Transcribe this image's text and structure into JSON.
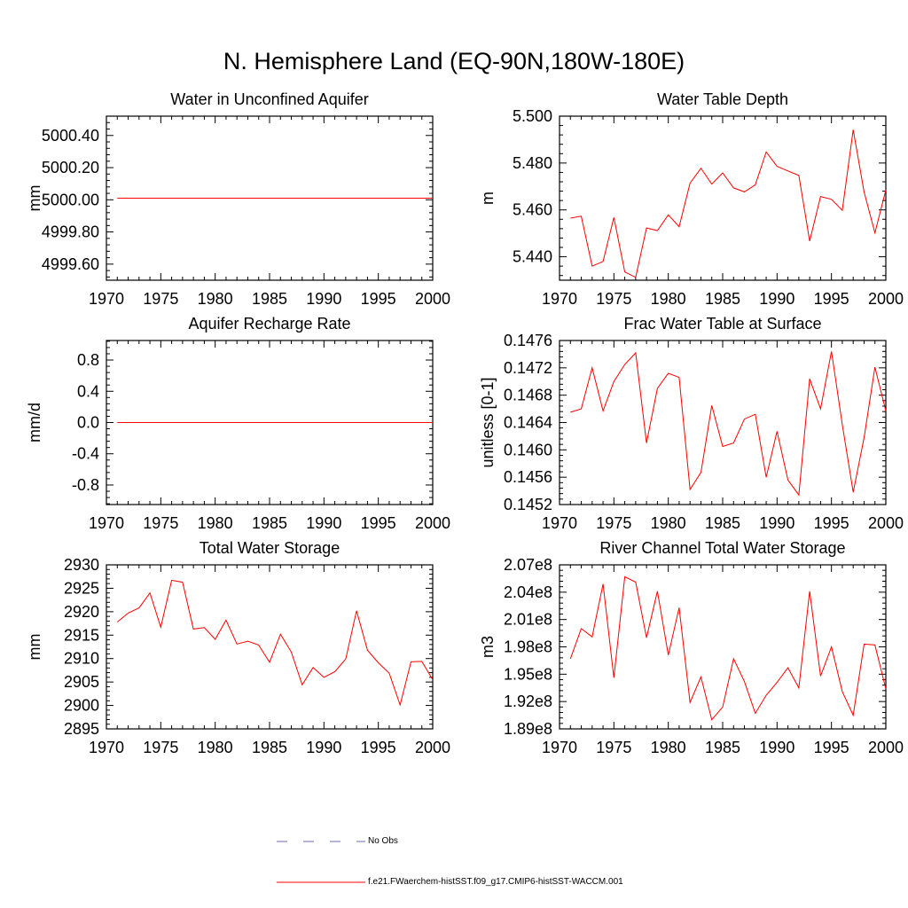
{
  "page_title": "N. Hemisphere Land (EQ-90N,180W-180E)",
  "legend": {
    "obs_label": "No Obs",
    "obs_color": "#6b6bb8",
    "model_label": "f.e21.FWaerchem-histSST.f09_g17.CMIP6-histSST-WACCM.001",
    "model_color": "#ff0000"
  },
  "chart_data": [
    {
      "type": "line",
      "title": "Water in Unconfined Aquifer",
      "ylabel": "mm",
      "xlim": [
        1970,
        2000
      ],
      "ylim": [
        4999.5,
        5000.52
      ],
      "xticks": [
        1970,
        1975,
        1980,
        1985,
        1990,
        1995,
        2000
      ],
      "xtick_labels": [
        "1970",
        "1975",
        "1980",
        "1985",
        "1990",
        "1995",
        "2000"
      ],
      "yticks": [
        4999.6,
        4999.8,
        5000.0,
        5000.2,
        5000.4
      ],
      "ytick_labels": [
        "4999.60",
        "4999.80",
        "5000.00",
        "5000.20",
        "5000.40"
      ],
      "x": [
        1971,
        1972,
        1973,
        1974,
        1975,
        1976,
        1977,
        1978,
        1979,
        1980,
        1981,
        1982,
        1983,
        1984,
        1985,
        1986,
        1987,
        1988,
        1989,
        1990,
        1991,
        1992,
        1993,
        1994,
        1995,
        1996,
        1997,
        1998,
        1999,
        2000
      ],
      "series": [
        {
          "values": [
            5000.01,
            5000.01,
            5000.01,
            5000.01,
            5000.01,
            5000.01,
            5000.01,
            5000.01,
            5000.01,
            5000.01,
            5000.01,
            5000.01,
            5000.01,
            5000.01,
            5000.01,
            5000.01,
            5000.01,
            5000.01,
            5000.01,
            5000.01,
            5000.01,
            5000.01,
            5000.01,
            5000.01,
            5000.01,
            5000.01,
            5000.01,
            5000.01,
            5000.01,
            5000.01
          ]
        }
      ]
    },
    {
      "type": "line",
      "title": "Water Table Depth",
      "ylabel": "m",
      "xlim": [
        1970,
        2000
      ],
      "ylim": [
        5.43,
        5.5
      ],
      "xticks": [
        1970,
        1975,
        1980,
        1985,
        1990,
        1995,
        2000
      ],
      "xtick_labels": [
        "1970",
        "1975",
        "1980",
        "1985",
        "1990",
        "1995",
        "2000"
      ],
      "yticks": [
        5.44,
        5.46,
        5.48,
        5.5
      ],
      "ytick_labels": [
        "5.440",
        "5.460",
        "5.480",
        "5.500"
      ],
      "x": [
        1971,
        1972,
        1973,
        1974,
        1975,
        1976,
        1977,
        1978,
        1979,
        1980,
        1981,
        1982,
        1983,
        1984,
        1985,
        1986,
        1987,
        1988,
        1989,
        1990,
        1991,
        1992,
        1993,
        1994,
        1995,
        1996,
        1997,
        1998,
        1999,
        2000
      ],
      "series": [
        {
          "values": [
            5.4565,
            5.4573,
            5.436,
            5.438,
            5.4568,
            5.4335,
            5.4312,
            5.4523,
            5.4512,
            5.4579,
            5.4528,
            5.4714,
            5.4778,
            5.471,
            5.4758,
            5.4694,
            5.4677,
            5.4707,
            5.4847,
            5.4786,
            5.4766,
            5.4747,
            5.4467,
            5.4657,
            5.4645,
            5.4598,
            5.4942,
            5.4676,
            5.4502,
            5.4685
          ]
        }
      ]
    },
    {
      "type": "line",
      "title": "Aquifer Recharge Rate",
      "ylabel": "mm/d",
      "xlim": [
        1970,
        2000
      ],
      "ylim": [
        -1.05,
        1.05
      ],
      "xticks": [
        1970,
        1975,
        1980,
        1985,
        1990,
        1995,
        2000
      ],
      "xtick_labels": [
        "1970",
        "1975",
        "1980",
        "1985",
        "1990",
        "1995",
        "2000"
      ],
      "yticks": [
        -0.8,
        -0.4,
        0.0,
        0.4,
        0.8
      ],
      "ytick_labels": [
        "-0.8",
        "-0.4",
        "0.0",
        "0.4",
        "0.8"
      ],
      "x": [
        1971,
        1972,
        1973,
        1974,
        1975,
        1976,
        1977,
        1978,
        1979,
        1980,
        1981,
        1982,
        1983,
        1984,
        1985,
        1986,
        1987,
        1988,
        1989,
        1990,
        1991,
        1992,
        1993,
        1994,
        1995,
        1996,
        1997,
        1998,
        1999,
        2000
      ],
      "series": [
        {
          "values": [
            0,
            0,
            0,
            0,
            0,
            0,
            0,
            0,
            0,
            0,
            0,
            0,
            0,
            0,
            0,
            0,
            0,
            0,
            0,
            0,
            0,
            0,
            0,
            0,
            0,
            0,
            0,
            0,
            0,
            0
          ]
        }
      ]
    },
    {
      "type": "line",
      "title": "Frac Water Table at Surface",
      "ylabel": "unitless [0-1]",
      "xlim": [
        1970,
        2000
      ],
      "ylim": [
        0.1452,
        0.1476
      ],
      "xticks": [
        1970,
        1975,
        1980,
        1985,
        1990,
        1995,
        2000
      ],
      "xtick_labels": [
        "1970",
        "1975",
        "1980",
        "1985",
        "1990",
        "1995",
        "2000"
      ],
      "yticks": [
        0.1452,
        0.1456,
        0.146,
        0.1464,
        0.1468,
        0.1472,
        0.1476
      ],
      "ytick_labels": [
        "0.1452",
        "0.1456",
        "0.1460",
        "0.1464",
        "0.1468",
        "0.1472",
        "0.1476"
      ],
      "x": [
        1971,
        1972,
        1973,
        1974,
        1975,
        1976,
        1977,
        1978,
        1979,
        1980,
        1981,
        1982,
        1983,
        1984,
        1985,
        1986,
        1987,
        1988,
        1989,
        1990,
        1991,
        1992,
        1993,
        1994,
        1995,
        1996,
        1997,
        1998,
        1999,
        2000
      ],
      "series": [
        {
          "values": [
            0.14655,
            0.1466,
            0.1472,
            0.14657,
            0.147,
            0.14725,
            0.14742,
            0.1461,
            0.1469,
            0.14712,
            0.14706,
            0.14542,
            0.14567,
            0.14665,
            0.14605,
            0.1461,
            0.14645,
            0.14652,
            0.1456,
            0.14627,
            0.14556,
            0.14534,
            0.14704,
            0.1466,
            0.14744,
            0.14637,
            0.14538,
            0.14618,
            0.14721,
            0.14657
          ]
        }
      ]
    },
    {
      "type": "line",
      "title": "Total Water Storage",
      "ylabel": "mm",
      "xlim": [
        1970,
        2000
      ],
      "ylim": [
        2895,
        2930
      ],
      "xticks": [
        1970,
        1975,
        1980,
        1985,
        1990,
        1995,
        2000
      ],
      "xtick_labels": [
        "1970",
        "1975",
        "1980",
        "1985",
        "1990",
        "1995",
        "2000"
      ],
      "yticks": [
        2895,
        2900,
        2905,
        2910,
        2915,
        2920,
        2925,
        2930
      ],
      "ytick_labels": [
        "2895",
        "2900",
        "2905",
        "2910",
        "2915",
        "2920",
        "2925",
        "2930"
      ],
      "x": [
        1971,
        1972,
        1973,
        1974,
        1975,
        1976,
        1977,
        1978,
        1979,
        1980,
        1981,
        1982,
        1983,
        1984,
        1985,
        1986,
        1987,
        1988,
        1989,
        1990,
        1991,
        1992,
        1993,
        1994,
        1995,
        1996,
        1997,
        1998,
        1999,
        2000
      ],
      "series": [
        {
          "values": [
            2917.8,
            2919.7,
            2920.8,
            2924.0,
            2916.7,
            2926.7,
            2926.3,
            2916.3,
            2916.6,
            2914.1,
            2918.2,
            2913.1,
            2913.7,
            2912.9,
            2909.2,
            2915.2,
            2911.4,
            2904.4,
            2908.1,
            2906.0,
            2907.2,
            2909.9,
            2920.2,
            2911.8,
            2909.1,
            2906.9,
            2900.1,
            2909.3,
            2909.4,
            2905.5
          ]
        }
      ]
    },
    {
      "type": "line",
      "title": "River Channel Total Water Storage",
      "ylabel": "m3",
      "xlim": [
        1970,
        2000
      ],
      "ylim": [
        189000000.0,
        207000000.0
      ],
      "xticks": [
        1970,
        1975,
        1980,
        1985,
        1990,
        1995,
        2000
      ],
      "xtick_labels": [
        "1970",
        "1975",
        "1980",
        "1985",
        "1990",
        "1995",
        "2000"
      ],
      "yticks": [
        189000000.0,
        192000000.0,
        195000000.0,
        198000000.0,
        201000000.0,
        204000000.0,
        207000000.0
      ],
      "ytick_labels": [
        "1.89e8",
        "1.92e8",
        "1.95e8",
        "1.98e8",
        "2.01e8",
        "2.04e8",
        "2.07e8"
      ],
      "x": [
        1971,
        1972,
        1973,
        1974,
        1975,
        1976,
        1977,
        1978,
        1979,
        1980,
        1981,
        1982,
        1983,
        1984,
        1985,
        1986,
        1987,
        1988,
        1989,
        1990,
        1991,
        1992,
        1993,
        1994,
        1995,
        1996,
        1997,
        1998,
        1999,
        2000
      ],
      "series": [
        {
          "values": [
            196700000.0,
            200000000.0,
            199100000.0,
            204900000.0,
            194600000.0,
            205700000.0,
            205100000.0,
            199000000.0,
            204100000.0,
            197100000.0,
            202300000.0,
            191900000.0,
            194700000.0,
            190000000.0,
            191400000.0,
            196700000.0,
            194200000.0,
            190700000.0,
            192700000.0,
            194100000.0,
            195700000.0,
            193500000.0,
            204100000.0,
            194800000.0,
            198000000.0,
            193100000.0,
            190500000.0,
            198300000.0,
            198200000.0,
            193400000.0
          ]
        }
      ]
    }
  ]
}
